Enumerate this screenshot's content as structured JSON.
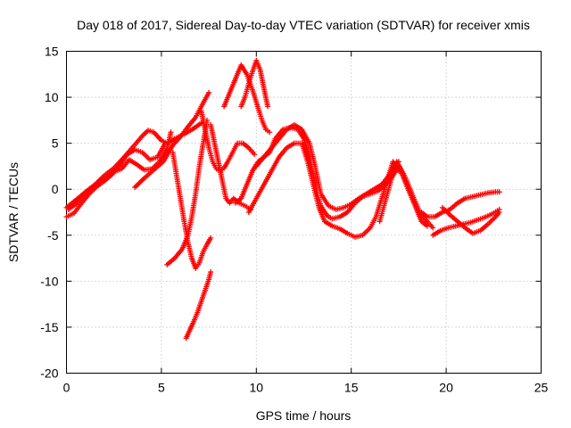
{
  "chart_data": {
    "type": "scatter",
    "title": "Day 018 of 2017, Sidereal Day-to-day VTEC variation (SDTVAR) for receiver xmis",
    "xlabel": "GPS time / hours",
    "ylabel": "SDTVAR / TECUs",
    "xlim": [
      0,
      25
    ],
    "ylim": [
      -20,
      15
    ],
    "xticks": [
      0,
      5,
      10,
      15,
      20,
      25
    ],
    "yticks": [
      -20,
      -15,
      -10,
      -5,
      0,
      5,
      10,
      15
    ],
    "grid": true,
    "marker": "plus",
    "color": "#ff0000",
    "series": [
      {
        "x": [
          0.0,
          0.3,
          0.6,
          1.0,
          1.5,
          2.0,
          2.5,
          3.0,
          3.5,
          4.0,
          4.3,
          4.6,
          5.0,
          5.3,
          5.7,
          6.2,
          6.7,
          7.1
        ],
        "y": [
          -2.0,
          -1.5,
          -1.0,
          -0.3,
          0.5,
          1.5,
          2.3,
          3.4,
          4.6,
          5.8,
          6.4,
          6.2,
          5.3,
          5.0,
          5.5,
          6.0,
          6.6,
          7.2
        ]
      },
      {
        "x": [
          0.0,
          0.4,
          0.8,
          1.2,
          1.6,
          2.0,
          2.4,
          2.8,
          3.2,
          3.6,
          4.0,
          4.4,
          4.8,
          5.2
        ],
        "y": [
          -3.0,
          -2.6,
          -1.5,
          -0.5,
          0.3,
          0.9,
          1.6,
          2.6,
          3.8,
          4.3,
          4.0,
          3.2,
          3.5,
          5.0
        ]
      },
      {
        "x": [
          0.1,
          0.5,
          0.9,
          1.3,
          1.7,
          2.1,
          2.5,
          2.9,
          3.3,
          3.7,
          4.1,
          4.5,
          4.9,
          5.3,
          5.5
        ],
        "y": [
          -2.2,
          -1.6,
          -0.6,
          0.1,
          0.6,
          1.2,
          1.9,
          2.2,
          3.2,
          2.7,
          2.1,
          2.2,
          3.0,
          4.4,
          6.2
        ]
      },
      {
        "x": [
          3.6,
          4.1,
          4.6,
          5.1,
          5.6,
          6.0,
          6.4,
          6.8,
          7.1,
          7.5
        ],
        "y": [
          0.2,
          1.2,
          2.1,
          3.0,
          4.8,
          5.7,
          6.8,
          7.8,
          9.0,
          10.5
        ]
      },
      {
        "x": [
          5.6,
          5.8,
          6.0,
          6.2,
          6.4,
          6.6,
          6.8,
          7.0,
          7.2,
          7.4,
          7.6
        ],
        "y": [
          4.0,
          1.5,
          -1.0,
          -3.5,
          -5.8,
          -7.5,
          -8.6,
          -8.0,
          -6.8,
          -6.0,
          -5.3
        ]
      },
      {
        "x": [
          5.3,
          5.7,
          6.1,
          6.4,
          6.6,
          6.8,
          7.0,
          7.2,
          7.4
        ],
        "y": [
          -8.2,
          -7.5,
          -6.5,
          -5.0,
          -3.0,
          -0.5,
          2.5,
          5.0,
          7.5
        ]
      },
      {
        "x": [
          6.3,
          6.5,
          6.7,
          6.9,
          7.1,
          7.3,
          7.5,
          7.6
        ],
        "y": [
          -16.2,
          -15.3,
          -14.4,
          -13.4,
          -12.2,
          -11.0,
          -9.8,
          -9.0
        ]
      },
      {
        "x": [
          7.1,
          7.3,
          7.5,
          7.7,
          7.9,
          8.1,
          8.3,
          8.5,
          8.8,
          9.0,
          9.3,
          9.6,
          9.9
        ],
        "y": [
          8.5,
          6.5,
          4.5,
          3.0,
          2.2,
          2.0,
          2.3,
          3.0,
          4.2,
          5.0,
          5.0,
          4.5,
          3.8
        ]
      },
      {
        "x": [
          7.6,
          7.8,
          8.0,
          8.2,
          8.4,
          8.6,
          8.8,
          9.1,
          9.4,
          9.7
        ],
        "y": [
          7.0,
          5.0,
          3.0,
          1.0,
          -1.0,
          -1.5,
          -1.0,
          -1.5,
          -1.8,
          -2.2
        ]
      },
      {
        "x": [
          8.3,
          8.6,
          8.9,
          9.2,
          9.5,
          9.8,
          10.1,
          10.3,
          10.5,
          10.7
        ],
        "y": [
          9.0,
          10.5,
          12.0,
          13.5,
          12.5,
          10.8,
          8.8,
          7.5,
          6.5,
          6.2
        ]
      },
      {
        "x": [
          9.2,
          9.4,
          9.6,
          9.8,
          10.0,
          10.2,
          10.4,
          10.6
        ],
        "y": [
          9.0,
          10.0,
          11.5,
          12.8,
          14.0,
          13.0,
          11.0,
          9.0
        ]
      },
      {
        "x": [
          8.9,
          9.2,
          9.5,
          9.8,
          10.1,
          10.4,
          10.7,
          11.0,
          11.4,
          11.8,
          12.2,
          12.5,
          12.8,
          13.0,
          13.2,
          13.4,
          13.6,
          13.8,
          14.0,
          14.4,
          14.8,
          15.2,
          15.6,
          16.0,
          16.4,
          16.8,
          17.2,
          17.5,
          17.8,
          18.1,
          18.4,
          18.7,
          19.0
        ],
        "y": [
          -1.5,
          -1.0,
          0.5,
          2.0,
          3.0,
          3.5,
          4.0,
          5.5,
          6.5,
          6.7,
          6.5,
          5.5,
          3.5,
          1.5,
          -0.5,
          -1.8,
          -2.5,
          -3.0,
          -3.2,
          -3.0,
          -2.5,
          -1.5,
          -0.8,
          -0.5,
          -0.2,
          0.5,
          1.5,
          2.5,
          1.0,
          -0.5,
          -2.0,
          -3.5,
          -4.0
        ]
      },
      {
        "x": [
          9.6,
          10.0,
          10.4,
          10.8,
          11.2,
          11.6,
          12.0,
          12.4,
          12.7,
          13.0,
          13.3,
          13.6,
          14.0,
          14.4,
          14.8,
          15.2,
          15.6,
          16.0,
          16.3,
          16.6,
          16.9,
          17.2,
          17.5
        ],
        "y": [
          -2.5,
          -1.0,
          0.5,
          2.0,
          3.5,
          4.5,
          5.0,
          5.0,
          3.0,
          0.5,
          -2.0,
          -3.5,
          -4.0,
          -4.3,
          -4.8,
          -5.2,
          -5.0,
          -4.2,
          -3.0,
          -1.0,
          1.0,
          3.0,
          2.0
        ]
      },
      {
        "x": [
          10.0,
          10.4,
          10.8,
          11.2,
          11.6,
          12.0,
          12.4,
          12.8,
          13.1,
          13.4,
          13.8,
          14.2,
          14.6,
          15.0,
          15.4,
          15.8,
          16.2,
          16.6,
          17.0,
          17.4,
          17.8,
          18.2,
          18.6,
          19.0,
          19.3
        ],
        "y": [
          2.5,
          3.5,
          4.5,
          5.5,
          6.5,
          7.0,
          6.5,
          5.0,
          2.5,
          -0.5,
          -1.8,
          -2.2,
          -2.0,
          -1.6,
          -1.0,
          -0.5,
          0.0,
          0.5,
          1.5,
          3.0,
          1.5,
          -0.5,
          -2.5,
          -3.5,
          -4.2
        ]
      },
      {
        "x": [
          18.7,
          19.0,
          19.4,
          19.8,
          20.2,
          20.6,
          21.0,
          21.4,
          21.8,
          22.2,
          22.6,
          22.8
        ],
        "y": [
          -2.5,
          -3.0,
          -3.0,
          -2.5,
          -2.2,
          -1.5,
          -1.0,
          -0.8,
          -0.6,
          -0.4,
          -0.3,
          -0.3
        ]
      },
      {
        "x": [
          19.3,
          19.7,
          20.1,
          20.5,
          20.9,
          21.3,
          21.7,
          22.1,
          22.5,
          22.8
        ],
        "y": [
          -5.0,
          -4.5,
          -4.2,
          -4.0,
          -3.8,
          -3.6,
          -3.3,
          -3.0,
          -2.6,
          -2.2
        ]
      },
      {
        "x": [
          19.8,
          20.2,
          20.6,
          21.0,
          21.4,
          21.8,
          22.2,
          22.6,
          22.8
        ],
        "y": [
          -2.0,
          -2.8,
          -3.5,
          -4.2,
          -4.8,
          -4.5,
          -3.8,
          -3.0,
          -2.5
        ]
      },
      {
        "x": [
          16.5,
          16.7,
          16.9,
          17.1,
          17.3,
          17.5
        ],
        "y": [
          -3.5,
          -2.0,
          -0.5,
          1.0,
          2.5,
          3.0
        ]
      }
    ]
  }
}
